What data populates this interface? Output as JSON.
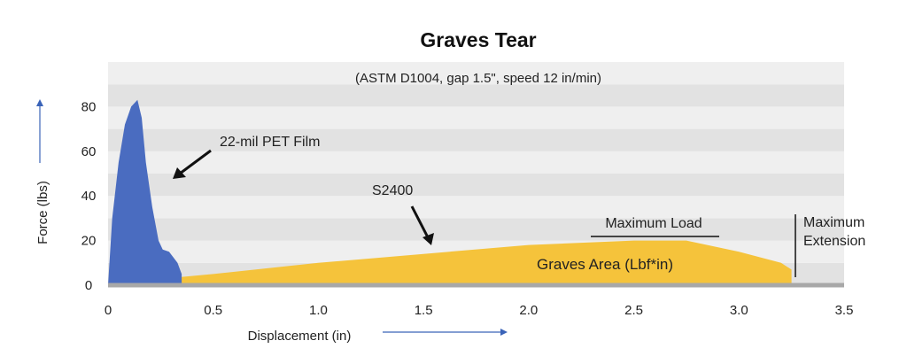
{
  "chart_data": {
    "type": "area",
    "title": "Graves Tear",
    "subtitle": "(ASTM D1004, gap 1.5\", speed 12 in/min)",
    "xlabel": "Displacement  (in)",
    "ylabel": "Force (lbs)",
    "xlim": [
      0,
      3.5
    ],
    "ylim": [
      0,
      100
    ],
    "x_ticks": [
      "0",
      "0.5",
      "1.0",
      "1.5",
      "2.0",
      "2.5",
      "3.0",
      "3.5"
    ],
    "x_tick_values": [
      0,
      0.5,
      1.0,
      1.5,
      2.0,
      2.5,
      3.0,
      3.5
    ],
    "y_ticks": [
      "0",
      "20",
      "40",
      "60",
      "80"
    ],
    "y_tick_values": [
      0,
      20,
      40,
      60,
      80
    ],
    "grid": "horizontal bands",
    "series": [
      {
        "name": "22-mil PET Film",
        "color": "#4a6cc0",
        "x": [
          0.0,
          0.02,
          0.05,
          0.08,
          0.11,
          0.14,
          0.16,
          0.18,
          0.21,
          0.24,
          0.26,
          0.29,
          0.33,
          0.35,
          0.35
        ],
        "y": [
          0,
          30,
          55,
          72,
          80,
          83,
          75,
          55,
          35,
          20,
          16,
          15,
          10,
          5,
          0
        ]
      },
      {
        "name": "S2400",
        "color": "#f5c33b",
        "x": [
          0.0,
          0.1,
          0.5,
          1.0,
          1.5,
          2.0,
          2.5,
          2.75,
          3.0,
          3.2,
          3.25,
          3.25
        ],
        "y": [
          0,
          1.5,
          5,
          10,
          14,
          18,
          20,
          20,
          15,
          10,
          7,
          0
        ]
      }
    ],
    "annotations": {
      "pet_label": "22-mil PET Film",
      "s2400_label": "S2400",
      "max_load": "Maximum Load",
      "max_extension_1": "Maximum",
      "max_extension_2": "Extension",
      "graves_area": "Graves Area (Lbf*in)"
    }
  },
  "colors": {
    "band_dark": "#e2e2e2",
    "band_light": "#efefef",
    "pet": "#4a6cc0",
    "s2400": "#f5c33b",
    "axis_arrow": "#3a63b8"
  }
}
